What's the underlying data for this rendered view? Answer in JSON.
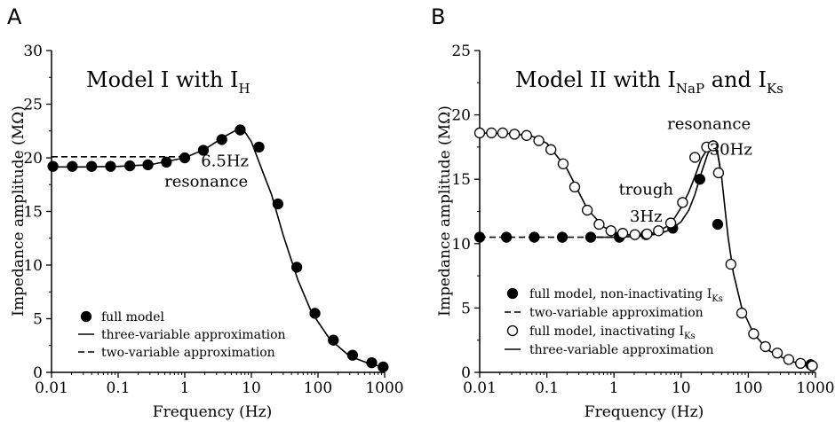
{
  "chart_data": [
    {
      "type": "line",
      "panel_label": "A",
      "title": {
        "main": "Model I with I",
        "sub": "H"
      },
      "xlabel": "Frequency (Hz)",
      "ylabel": "Impedance amplitude (MΩ)",
      "x_scale": "log",
      "xlim": [
        0.01,
        1000
      ],
      "ylim": [
        0,
        30
      ],
      "x_ticks": [
        0.01,
        0.1,
        1,
        10,
        100,
        1000
      ],
      "x_tick_labels": [
        "0.01",
        "0.1",
        "1",
        "10",
        "100",
        "1000"
      ],
      "y_ticks": [
        0,
        5,
        10,
        15,
        20,
        25,
        30
      ],
      "y_tick_labels": [
        "0",
        "5",
        "10",
        "15",
        "20",
        "25",
        "30"
      ],
      "annotations": [
        {
          "text": "6.5Hz",
          "x": 4.0,
          "y": 19.2
        },
        {
          "text": "resonance",
          "x": 2.1,
          "y": 17.3
        }
      ],
      "legend_position": "bottom-left",
      "legend": [
        {
          "label": "full model",
          "marker": "filled-circle"
        },
        {
          "label": "three-variable approximation",
          "line": "solid"
        },
        {
          "label": "two-variable approximation",
          "line": "dashed"
        }
      ],
      "series": [
        {
          "name": "full model",
          "style": "filled-circle",
          "x": [
            0.0105,
            0.0205,
            0.04,
            0.077,
            0.15,
            0.28,
            0.53,
            1.0,
            1.9,
            3.6,
            6.8,
            13,
            25,
            48,
            90,
            170,
            330,
            640,
            950
          ],
          "y": [
            19.2,
            19.2,
            19.2,
            19.2,
            19.25,
            19.35,
            19.6,
            20.0,
            20.7,
            21.7,
            22.6,
            21.0,
            15.7,
            9.8,
            5.5,
            3.0,
            1.6,
            0.9,
            0.5
          ]
        },
        {
          "name": "three-variable approximation",
          "style": "solid",
          "x": [
            0.01,
            0.03,
            0.1,
            0.3,
            1,
            2,
            4,
            6,
            8,
            10,
            15,
            20,
            30,
            50,
            80,
            150,
            300,
            600,
            1000
          ],
          "y": [
            19.15,
            19.15,
            19.2,
            19.35,
            20.0,
            20.8,
            22.0,
            22.6,
            22.4,
            21.5,
            18.6,
            16.6,
            12.8,
            8.6,
            5.6,
            3.1,
            1.5,
            0.8,
            0.45
          ]
        },
        {
          "name": "two-variable approximation",
          "style": "dashed",
          "x": [
            0.01,
            0.1,
            0.4,
            0.8,
            1.0
          ],
          "y": [
            20.1,
            20.1,
            20.1,
            20.1,
            20.1
          ]
        }
      ]
    },
    {
      "type": "line",
      "panel_label": "B",
      "title": {
        "main": "Model II with I",
        "sub1": "NaP",
        "mid": " and I",
        "sub2": "Ks"
      },
      "xlabel": "Frequency (Hz)",
      "ylabel": "Impedance amplitude (MΩ)",
      "x_scale": "log",
      "xlim": [
        0.01,
        1000
      ],
      "ylim": [
        0,
        25
      ],
      "x_ticks": [
        0.01,
        0.1,
        1,
        10,
        100,
        1000
      ],
      "x_tick_labels": [
        "0.01",
        "0.1",
        "1",
        "10",
        "100",
        "1000"
      ],
      "y_ticks": [
        0,
        5,
        10,
        15,
        20,
        25
      ],
      "y_tick_labels": [
        "0",
        "5",
        "10",
        "15",
        "20",
        "25"
      ],
      "annotations": [
        {
          "text": "resonance",
          "x": 26,
          "y": 18.9
        },
        {
          "text": "30Hz",
          "x": 55,
          "y": 16.9
        },
        {
          "text": "trough",
          "x": 3.0,
          "y": 13.8
        },
        {
          "text": "3Hz",
          "x": 3.0,
          "y": 11.7
        }
      ],
      "legend_position": "bottom-left",
      "legend": [
        {
          "label": "full model, non-inactivating I",
          "sub": "Ks",
          "marker": "filled-circle"
        },
        {
          "label": "two-variable approximation",
          "line": "dashed"
        },
        {
          "label": "full model, inactivating I",
          "sub": "Ks",
          "marker": "open-circle"
        },
        {
          "label": "three-variable approximation",
          "line": "solid"
        }
      ],
      "series": [
        {
          "name": "full model, non-inactivating IKs",
          "style": "filled-circle",
          "x": [
            0.01,
            0.025,
            0.065,
            0.17,
            0.45,
            1.2,
            3.0,
            7.5,
            19,
            35,
            850
          ],
          "y": [
            10.5,
            10.5,
            10.5,
            10.5,
            10.5,
            10.5,
            10.7,
            11.2,
            15.0,
            11.5,
            0.6
          ]
        },
        {
          "name": "two-variable approximation",
          "style": "dashed",
          "x": [
            0.01,
            0.1,
            0.5,
            1.0
          ],
          "y": [
            10.5,
            10.5,
            10.5,
            10.5
          ]
        },
        {
          "name": "full model, inactivating IKs",
          "style": "open-circle",
          "x": [
            0.01,
            0.015,
            0.022,
            0.033,
            0.05,
            0.076,
            0.115,
            0.175,
            0.26,
            0.4,
            0.6,
            0.9,
            1.35,
            2.05,
            3.1,
            4.6,
            7.0,
            10.5,
            16,
            24,
            30,
            36,
            55,
            80,
            120,
            180,
            270,
            400,
            600,
            900
          ],
          "y": [
            18.6,
            18.6,
            18.6,
            18.5,
            18.4,
            18.0,
            17.3,
            16.2,
            14.4,
            12.6,
            11.5,
            11.0,
            10.8,
            10.7,
            10.75,
            11.0,
            11.6,
            13.2,
            16.7,
            17.5,
            17.6,
            15.5,
            8.4,
            4.6,
            3.0,
            2.0,
            1.5,
            1.0,
            0.7,
            0.5
          ]
        },
        {
          "name": "three-variable approximation",
          "style": "solid",
          "x": [
            0.01,
            0.03,
            0.06,
            0.1,
            0.2,
            0.4,
            0.7,
            1.0,
            1.5,
            2,
            3,
            4,
            6,
            8,
            10,
            13,
            16,
            20,
            25,
            30,
            35,
            40,
            50,
            60,
            80,
            120,
            200,
            400,
            1000
          ],
          "y": [
            18.6,
            18.55,
            18.35,
            17.8,
            15.8,
            12.7,
            11.3,
            10.9,
            10.7,
            10.65,
            10.7,
            10.85,
            11.3,
            12.0,
            12.8,
            14.0,
            15.2,
            16.6,
            17.4,
            17.6,
            17.0,
            15.2,
            10.5,
            7.7,
            5.0,
            3.0,
            1.7,
            0.9,
            0.4
          ]
        },
        {
          "name": "full model, non-inactivating IKs (curve)",
          "style": "solid",
          "x": [
            0.5,
            1.0,
            2,
            3,
            5,
            7,
            10,
            13,
            16,
            20,
            25,
            30,
            35,
            40
          ],
          "y": [
            10.5,
            10.5,
            10.55,
            10.6,
            10.8,
            11.1,
            11.7,
            12.6,
            13.8,
            15.5,
            17.0,
            17.6,
            17.0,
            15.2
          ]
        }
      ]
    }
  ]
}
